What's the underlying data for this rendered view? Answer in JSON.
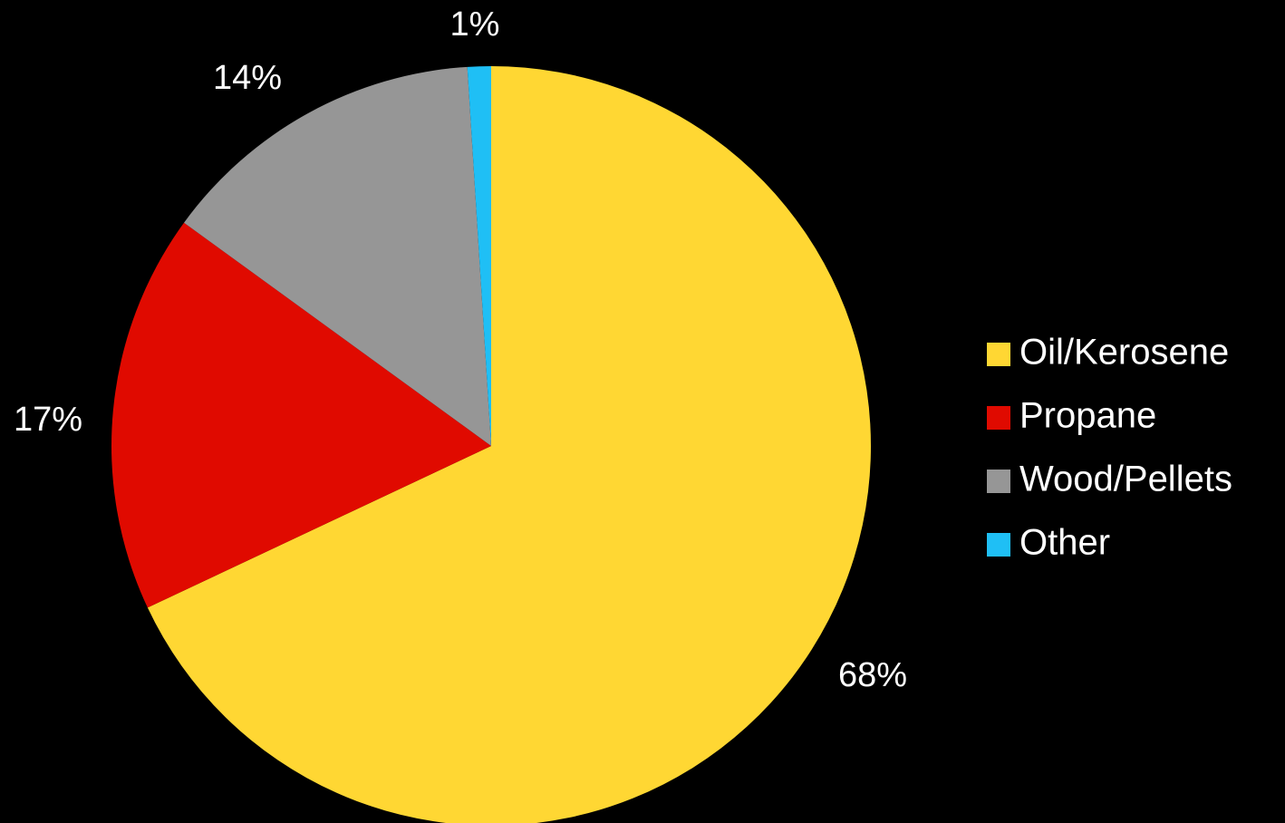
{
  "chart_data": {
    "type": "pie",
    "start_angle_deg": 0,
    "direction": "clockwise",
    "legend_position": "right",
    "slices": [
      {
        "label": "Oil/Kerosene",
        "value": 68,
        "value_label": "68%",
        "color": "#FFD733"
      },
      {
        "label": "Propane",
        "value": 17,
        "value_label": "17%",
        "color": "#E00A00"
      },
      {
        "label": "Wood/Pellets",
        "value": 14,
        "value_label": "14%",
        "color": "#969696"
      },
      {
        "label": "Other",
        "value": 1,
        "value_label": "1%",
        "color": "#1FBFF5"
      }
    ]
  }
}
